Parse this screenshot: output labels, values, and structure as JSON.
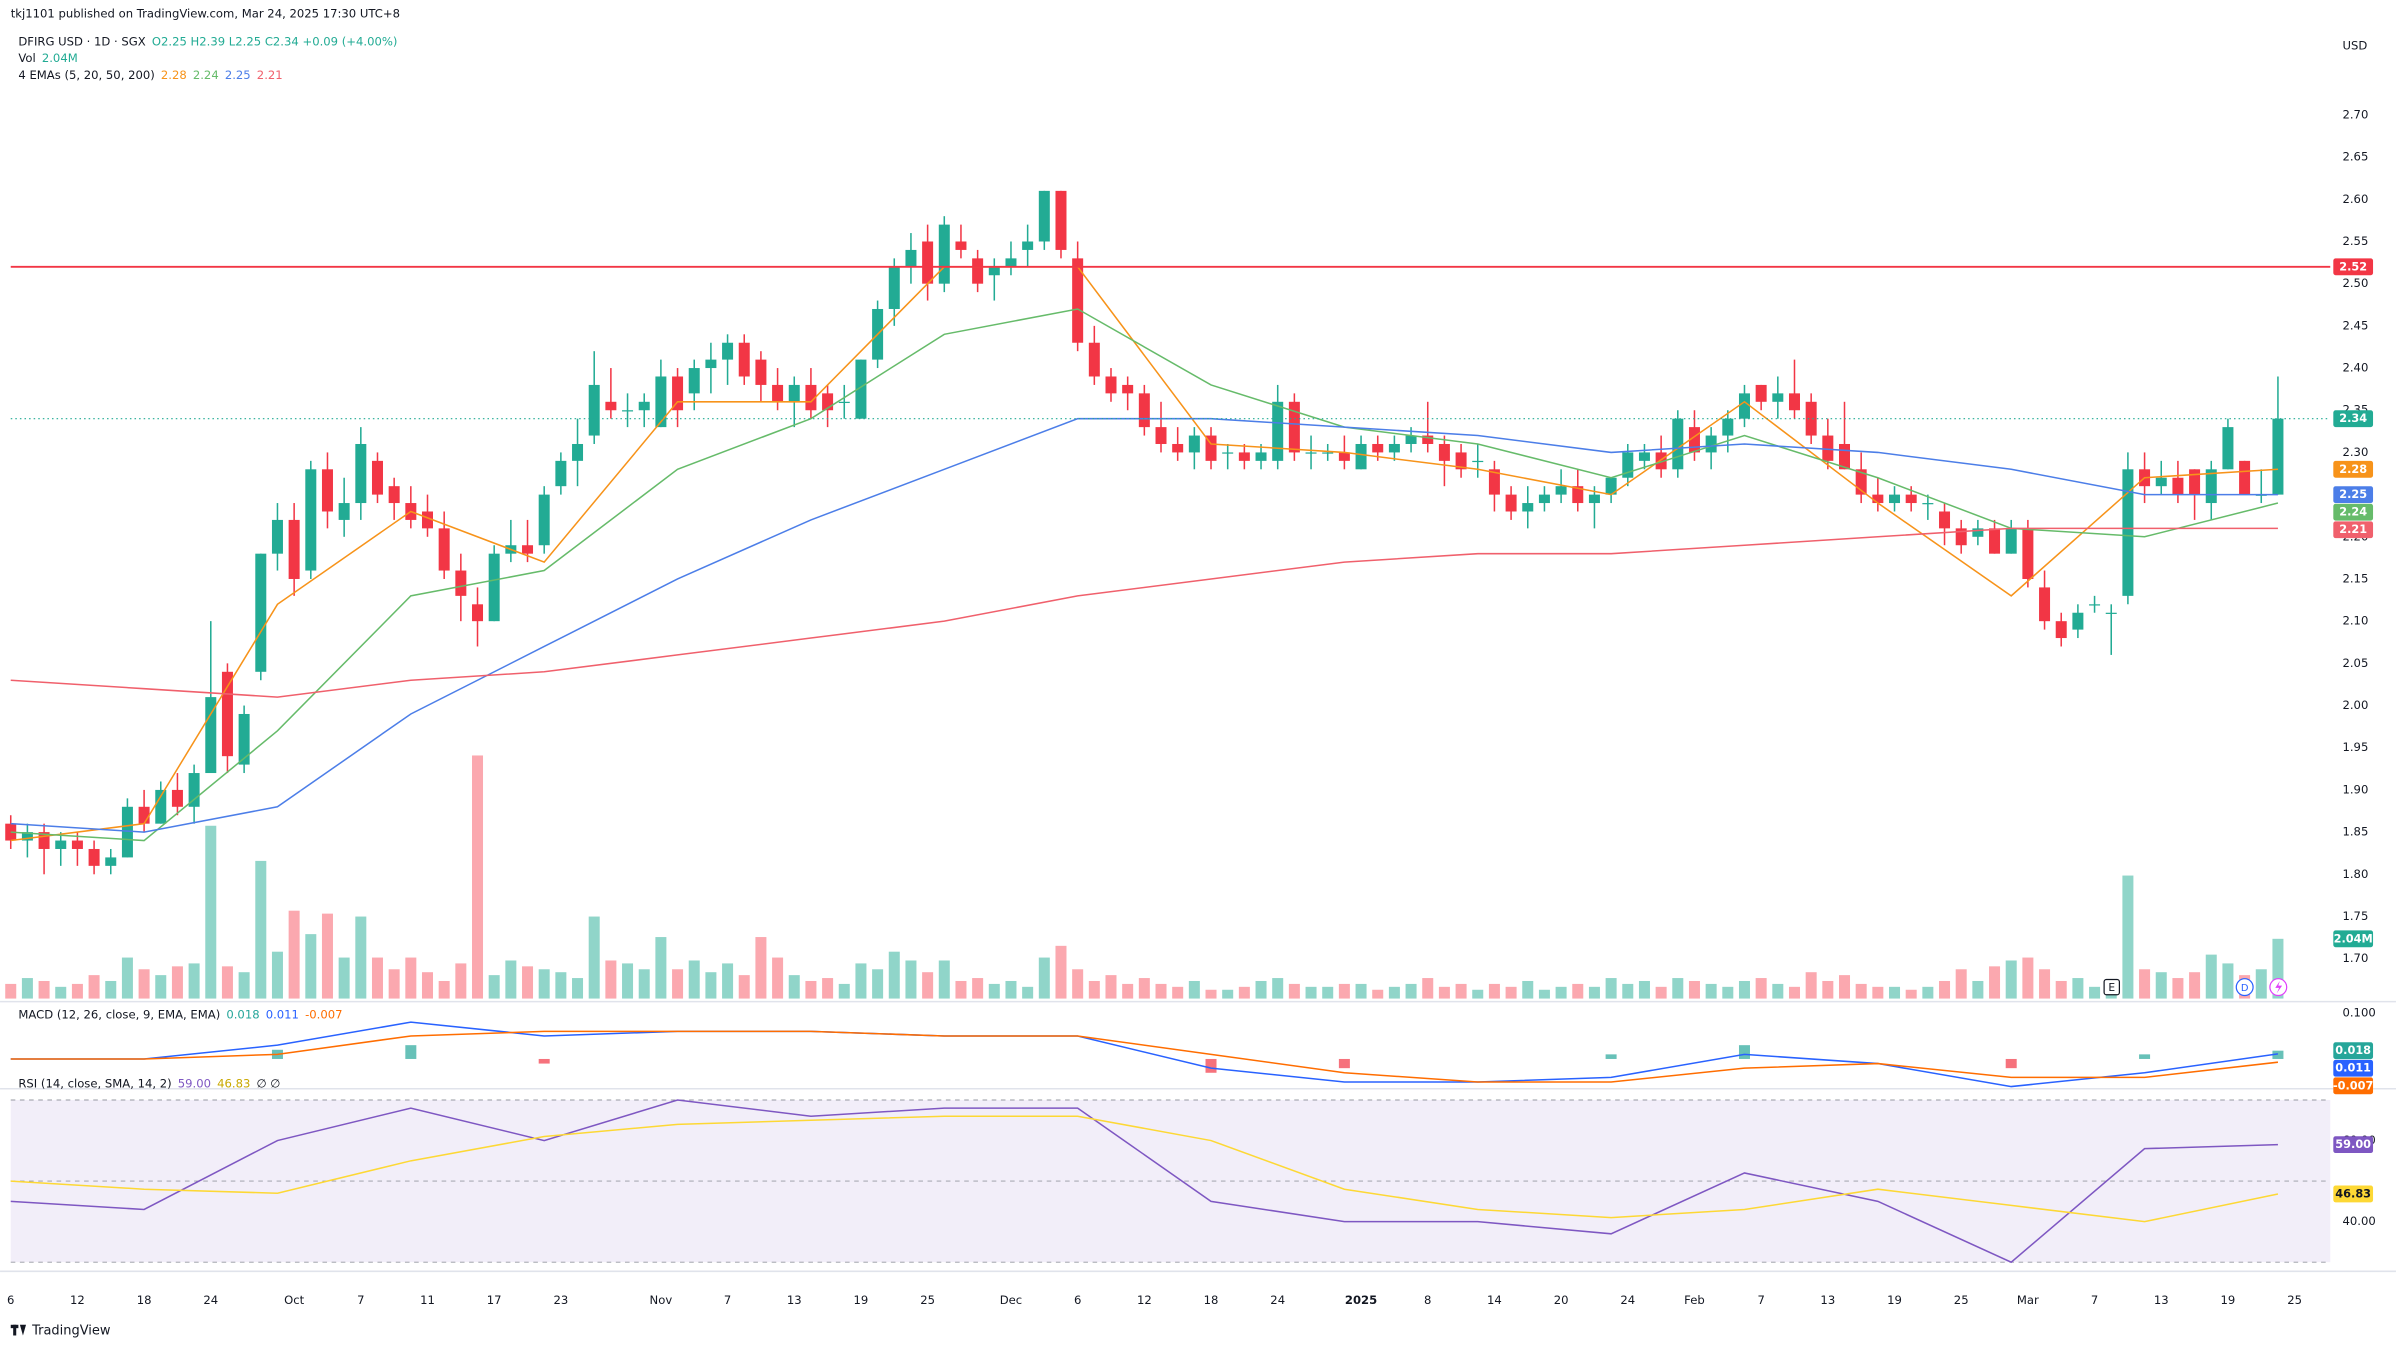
{
  "chart_data": {
    "type": "candlestick",
    "title": "tkj1101 published on TradingView.com, Mar 24, 2025 17:30 UTC+8",
    "symbol": "DFIRG USD · 1D · SGX",
    "ohlc_legend": "O2.25 H2.39 L2.25 C2.34 +0.09 (+4.00%)",
    "currency": "USD",
    "footer": "TradingView",
    "markers": [
      "E",
      "D"
    ],
    "up_color": "#22ab94",
    "down_color": "#f23645",
    "categories": [
      "6",
      null,
      null,
      null,
      "12",
      null,
      null,
      null,
      "18",
      null,
      null,
      null,
      "24",
      null,
      null,
      null,
      null,
      "Oct",
      null,
      null,
      null,
      "7",
      null,
      null,
      null,
      "11",
      null,
      null,
      null,
      "17",
      null,
      null,
      null,
      "23",
      null,
      null,
      null,
      null,
      null,
      "Nov",
      null,
      null,
      null,
      "7",
      null,
      null,
      null,
      "13",
      null,
      null,
      null,
      "19",
      null,
      null,
      null,
      "25",
      null,
      null,
      null,
      null,
      "Dec",
      null,
      null,
      null,
      "6",
      null,
      null,
      null,
      "12",
      null,
      null,
      null,
      "18",
      null,
      null,
      null,
      "24",
      null,
      null,
      null,
      null,
      "2025",
      null,
      null,
      null,
      "8",
      null,
      null,
      null,
      "14",
      null,
      null,
      null,
      "20",
      null,
      null,
      null,
      "24",
      null,
      null,
      null,
      "Feb",
      null,
      null,
      null,
      "7",
      null,
      null,
      null,
      "13",
      null,
      null,
      null,
      "19",
      null,
      null,
      null,
      "25",
      null,
      null,
      null,
      "Mar",
      null,
      null,
      null,
      "7",
      null,
      null,
      null,
      "13",
      null,
      null,
      null,
      "19",
      null,
      null,
      null,
      "25"
    ],
    "open": [
      1.86,
      1.84,
      1.85,
      1.83,
      1.84,
      1.83,
      1.81,
      1.82,
      1.88,
      1.86,
      1.9,
      1.88,
      1.92,
      2.04,
      1.93,
      2.04,
      2.18,
      2.22,
      2.16,
      2.28,
      2.22,
      2.24,
      2.29,
      2.26,
      2.24,
      2.23,
      2.21,
      2.16,
      2.12,
      2.1,
      2.18,
      2.19,
      2.19,
      2.26,
      2.29,
      2.32,
      2.36,
      2.35,
      2.35,
      2.33,
      2.39,
      2.37,
      2.4,
      2.41,
      2.43,
      2.41,
      2.38,
      2.36,
      2.38,
      2.37,
      2.36,
      2.34,
      2.41,
      2.47,
      2.52,
      2.55,
      2.5,
      2.55,
      2.53,
      2.51,
      2.52,
      2.54,
      2.55,
      2.61,
      2.53,
      2.43,
      2.39,
      2.38,
      2.37,
      2.33,
      2.31,
      2.3,
      2.32,
      2.3,
      2.3,
      2.29,
      2.29,
      2.36,
      2.3,
      2.3,
      2.3,
      2.28,
      2.31,
      2.3,
      2.31,
      2.32,
      2.31,
      2.3,
      2.29,
      2.28,
      2.25,
      2.23,
      2.24,
      2.25,
      2.26,
      2.24,
      2.25,
      2.27,
      2.29,
      2.3,
      2.28,
      2.33,
      2.3,
      2.32,
      2.34,
      2.38,
      2.36,
      2.37,
      2.36,
      2.32,
      2.31,
      2.28,
      2.25,
      2.24,
      2.25,
      2.24,
      2.23,
      2.21,
      2.2,
      2.21,
      2.18,
      2.21,
      2.14,
      2.1,
      2.09,
      2.12,
      2.11,
      2.13,
      2.28,
      2.26,
      2.27,
      2.28,
      2.24,
      2.28,
      2.29,
      2.25,
      2.25,
      null
    ],
    "high": [
      1.87,
      1.86,
      1.86,
      1.85,
      1.85,
      1.84,
      1.83,
      1.89,
      1.9,
      1.91,
      1.92,
      1.93,
      2.1,
      2.05,
      2.0,
      2.18,
      2.24,
      2.24,
      2.29,
      2.3,
      2.27,
      2.33,
      2.3,
      2.27,
      2.26,
      2.25,
      2.23,
      2.18,
      2.14,
      2.19,
      2.22,
      2.22,
      2.26,
      2.3,
      2.34,
      2.42,
      2.4,
      2.37,
      2.37,
      2.41,
      2.4,
      2.41,
      2.43,
      2.44,
      2.44,
      2.42,
      2.4,
      2.39,
      2.4,
      2.38,
      2.38,
      2.41,
      2.48,
      2.53,
      2.56,
      2.57,
      2.58,
      2.57,
      2.54,
      2.53,
      2.55,
      2.57,
      2.61,
      2.61,
      2.55,
      2.45,
      2.4,
      2.39,
      2.38,
      2.36,
      2.33,
      2.33,
      2.33,
      2.31,
      2.31,
      2.31,
      2.38,
      2.37,
      2.32,
      2.31,
      2.32,
      2.32,
      2.32,
      2.32,
      2.33,
      2.36,
      2.32,
      2.31,
      2.31,
      2.29,
      2.26,
      2.26,
      2.26,
      2.28,
      2.28,
      2.26,
      2.27,
      2.31,
      2.31,
      2.32,
      2.35,
      2.35,
      2.33,
      2.35,
      2.38,
      2.38,
      2.39,
      2.41,
      2.37,
      2.34,
      2.36,
      2.3,
      2.27,
      2.26,
      2.26,
      2.25,
      2.24,
      2.22,
      2.22,
      2.22,
      2.22,
      2.22,
      2.16,
      2.11,
      2.12,
      2.13,
      2.12,
      2.3,
      2.3,
      2.29,
      2.29,
      2.28,
      2.29,
      2.34,
      2.29,
      2.28,
      2.39,
      null
    ],
    "low": [
      1.83,
      1.82,
      1.8,
      1.81,
      1.81,
      1.8,
      1.8,
      1.82,
      1.85,
      1.86,
      1.87,
      1.86,
      1.92,
      1.92,
      1.92,
      2.03,
      2.16,
      2.13,
      2.15,
      2.21,
      2.2,
      2.22,
      2.24,
      2.22,
      2.21,
      2.2,
      2.15,
      2.1,
      2.07,
      2.1,
      2.17,
      2.17,
      2.18,
      2.25,
      2.26,
      2.31,
      2.34,
      2.33,
      2.33,
      2.33,
      2.33,
      2.35,
      2.37,
      2.38,
      2.38,
      2.36,
      2.35,
      2.33,
      2.34,
      2.33,
      2.34,
      2.34,
      2.4,
      2.45,
      2.5,
      2.48,
      2.49,
      2.53,
      2.49,
      2.48,
      2.51,
      2.52,
      2.54,
      2.53,
      2.42,
      2.38,
      2.36,
      2.35,
      2.32,
      2.3,
      2.29,
      2.28,
      2.28,
      2.28,
      2.28,
      2.28,
      2.28,
      2.29,
      2.28,
      2.29,
      2.28,
      2.28,
      2.29,
      2.29,
      2.3,
      2.3,
      2.26,
      2.27,
      2.27,
      2.23,
      2.22,
      2.21,
      2.23,
      2.24,
      2.23,
      2.21,
      2.24,
      2.26,
      2.28,
      2.27,
      2.27,
      2.29,
      2.28,
      2.3,
      2.33,
      2.35,
      2.34,
      2.34,
      2.31,
      2.28,
      2.28,
      2.24,
      2.23,
      2.23,
      2.23,
      2.22,
      2.19,
      2.18,
      2.19,
      2.18,
      2.18,
      2.14,
      2.09,
      2.07,
      2.08,
      2.11,
      2.06,
      2.12,
      2.24,
      2.25,
      2.24,
      2.22,
      2.22,
      2.28,
      2.25,
      2.24,
      2.25,
      null
    ],
    "close": [
      1.84,
      1.85,
      1.83,
      1.84,
      1.83,
      1.81,
      1.82,
      1.88,
      1.86,
      1.9,
      1.88,
      1.92,
      2.01,
      1.94,
      1.99,
      2.18,
      2.22,
      2.15,
      2.28,
      2.23,
      2.24,
      2.31,
      2.25,
      2.24,
      2.22,
      2.21,
      2.16,
      2.13,
      2.1,
      2.18,
      2.19,
      2.18,
      2.25,
      2.29,
      2.31,
      2.38,
      2.35,
      2.35,
      2.36,
      2.39,
      2.35,
      2.4,
      2.41,
      2.43,
      2.39,
      2.38,
      2.36,
      2.38,
      2.35,
      2.35,
      2.36,
      2.41,
      2.47,
      2.52,
      2.54,
      2.5,
      2.57,
      2.54,
      2.5,
      2.52,
      2.53,
      2.55,
      2.61,
      2.54,
      2.43,
      2.39,
      2.37,
      2.37,
      2.33,
      2.31,
      2.3,
      2.32,
      2.29,
      2.3,
      2.29,
      2.3,
      2.36,
      2.3,
      2.3,
      2.3,
      2.29,
      2.31,
      2.3,
      2.31,
      2.32,
      2.31,
      2.29,
      2.28,
      2.29,
      2.25,
      2.23,
      2.24,
      2.25,
      2.26,
      2.24,
      2.25,
      2.27,
      2.3,
      2.3,
      2.28,
      2.34,
      2.3,
      2.32,
      2.34,
      2.37,
      2.36,
      2.37,
      2.35,
      2.32,
      2.29,
      2.28,
      2.25,
      2.24,
      2.25,
      2.24,
      2.24,
      2.21,
      2.19,
      2.21,
      2.18,
      2.21,
      2.15,
      2.1,
      2.08,
      2.11,
      2.12,
      2.11,
      2.28,
      2.26,
      2.27,
      2.25,
      2.25,
      2.28,
      2.33,
      2.25,
      2.25,
      2.34,
      null
    ],
    "ylim": [
      1.65,
      2.8
    ],
    "yticks": [
      {
        "value": 1.7,
        "label": "1.70"
      },
      1.75,
      {
        "value": 1.8,
        "label": "1.80"
      },
      1.85,
      {
        "value": 1.9,
        "label": "1.90"
      },
      1.95,
      {
        "value": 2.0,
        "label": "2.00"
      },
      2.05,
      {
        "value": 2.1,
        "label": "2.10"
      },
      2.15,
      {
        "value": 2.2,
        "label": "2.20"
      },
      2.25,
      {
        "value": 2.3,
        "label": "2.30"
      },
      2.35,
      {
        "value": 2.4,
        "label": "2.40"
      },
      2.45,
      {
        "value": 2.5,
        "label": "2.50"
      },
      2.55,
      {
        "value": 2.6,
        "label": "2.60"
      },
      2.65,
      {
        "value": 2.7,
        "label": "2.70"
      }
    ],
    "hline": {
      "value": 2.52,
      "color": "#f23645"
    },
    "volume": {
      "name": "Vol",
      "ylim": [
        0,
        9
      ],
      "values": [
        0.5,
        0.7,
        0.6,
        0.4,
        0.5,
        0.8,
        0.6,
        1.4,
        1.0,
        0.8,
        1.1,
        1.2,
        5.9,
        1.1,
        0.9,
        4.7,
        1.6,
        3.0,
        2.2,
        2.9,
        1.4,
        2.8,
        1.4,
        1.0,
        1.4,
        0.9,
        0.6,
        1.2,
        8.3,
        0.8,
        1.3,
        1.1,
        1.0,
        0.9,
        0.7,
        2.8,
        1.3,
        1.2,
        1.0,
        2.1,
        1.0,
        1.3,
        0.9,
        1.2,
        0.8,
        2.1,
        1.4,
        0.8,
        0.6,
        0.7,
        0.5,
        1.2,
        1.0,
        1.6,
        1.3,
        0.9,
        1.3,
        0.6,
        0.7,
        0.5,
        0.6,
        0.4,
        1.4,
        1.8,
        1.0,
        0.6,
        0.8,
        0.5,
        0.7,
        0.5,
        0.4,
        0.6,
        0.3,
        0.3,
        0.4,
        0.6,
        0.7,
        0.5,
        0.4,
        0.4,
        0.5,
        0.5,
        0.3,
        0.4,
        0.5,
        0.7,
        0.4,
        0.5,
        0.3,
        0.5,
        0.4,
        0.6,
        0.3,
        0.4,
        0.5,
        0.4,
        0.7,
        0.5,
        0.6,
        0.4,
        0.7,
        0.6,
        0.5,
        0.4,
        0.6,
        0.7,
        0.5,
        0.4,
        0.9,
        0.6,
        0.8,
        0.5,
        0.4,
        0.4,
        0.3,
        0.4,
        0.6,
        1.0,
        0.6,
        1.1,
        1.3,
        1.4,
        1.0,
        0.6,
        0.7,
        0.4,
        0.6,
        4.2,
        1.0,
        0.9,
        0.7,
        0.9,
        1.5,
        1.2,
        0.8,
        1.0,
        2.04,
        null
      ],
      "value_labels": [
        null,
        null,
        null,
        null,
        null,
        null,
        null,
        null,
        null,
        null,
        null,
        null,
        null,
        null,
        null,
        null,
        null,
        null,
        null,
        null,
        null,
        null,
        null,
        null,
        null,
        null,
        null,
        null,
        null,
        null,
        null,
        null,
        null,
        null,
        null,
        null,
        null,
        null,
        null,
        null,
        null,
        null,
        null,
        null,
        null,
        null,
        null,
        null,
        null,
        null,
        null,
        null,
        null,
        null,
        null,
        null,
        null,
        null,
        null,
        null,
        null,
        null,
        null,
        null,
        null,
        null,
        null,
        null,
        null,
        null,
        null,
        null,
        null,
        null,
        null,
        null,
        null,
        null,
        null,
        null,
        null,
        null,
        null,
        null,
        null,
        null,
        null,
        null,
        null,
        null,
        null,
        null,
        null,
        null,
        null,
        null,
        null,
        null,
        null,
        null,
        null,
        null,
        null,
        null,
        null,
        null,
        null,
        null,
        null,
        null,
        null,
        null,
        null,
        null,
        null,
        null,
        null,
        null,
        null,
        null,
        null,
        null,
        null,
        null,
        null,
        null,
        null,
        null,
        null,
        null,
        null,
        null,
        null,
        null,
        null,
        null,
        "2.04M",
        null
      ]
    },
    "ema": {
      "name": "4 EMAs (5, 20, 50, 200)",
      "x": [
        0,
        8,
        16,
        24,
        32,
        40,
        48,
        56,
        64,
        72,
        80,
        88,
        96,
        104,
        112,
        120,
        128,
        136
      ],
      "series": [
        {
          "color": "#f7931a",
          "values": [
            1.84,
            1.86,
            2.12,
            2.23,
            2.17,
            2.36,
            2.36,
            2.52,
            2.52,
            2.31,
            2.3,
            2.28,
            2.25,
            2.36,
            2.24,
            2.13,
            2.27,
            2.28
          ]
        },
        {
          "color": "#66bb6a",
          "values": [
            1.85,
            1.84,
            1.97,
            2.13,
            2.16,
            2.28,
            2.34,
            2.44,
            2.47,
            2.38,
            2.33,
            2.31,
            2.27,
            2.32,
            2.27,
            2.21,
            2.2,
            2.24
          ]
        },
        {
          "color": "#4c7ee8",
          "values": [
            1.86,
            1.85,
            1.88,
            1.99,
            2.07,
            2.15,
            2.22,
            2.28,
            2.34,
            2.34,
            2.33,
            2.32,
            2.3,
            2.31,
            2.3,
            2.28,
            2.25,
            2.25
          ]
        },
        {
          "color": "#f0606c",
          "values": [
            2.03,
            2.02,
            2.01,
            2.03,
            2.04,
            2.06,
            2.08,
            2.1,
            2.13,
            2.15,
            2.17,
            2.18,
            2.18,
            2.19,
            2.2,
            2.21,
            2.21,
            2.21
          ]
        }
      ]
    },
    "macd": {
      "name": "MACD (12, 26, close, 9, EMA, EMA)",
      "x": [
        0,
        8,
        16,
        24,
        32,
        40,
        48,
        56,
        64,
        72,
        80,
        88,
        96,
        104,
        112,
        120,
        128,
        136
      ],
      "ylim": [
        -0.063,
        0.123
      ],
      "yticks": [
        {
          "value": 0.1,
          "label": "0.100"
        }
      ],
      "series": [
        {
          "type": "bar",
          "color": "#26a69a",
          "values": [
            0,
            0,
            0.02,
            0.03,
            -0.01,
            0,
            0,
            0,
            0,
            -0.03,
            -0.02,
            0,
            0.01,
            0.03,
            0,
            -0.02,
            0.01,
            0.018
          ]
        },
        {
          "type": "line",
          "color": "#2962ff",
          "values": [
            0.0,
            0.0,
            0.03,
            0.08,
            0.05,
            0.06,
            0.06,
            0.05,
            0.05,
            -0.02,
            -0.05,
            -0.05,
            -0.04,
            0.01,
            -0.01,
            -0.06,
            -0.03,
            0.011
          ]
        },
        {
          "type": "line",
          "color": "#ff6d00",
          "values": [
            0.0,
            0.0,
            0.01,
            0.05,
            0.06,
            0.06,
            0.06,
            0.05,
            0.05,
            0.01,
            -0.03,
            -0.05,
            -0.05,
            -0.02,
            -0.01,
            -0.04,
            -0.04,
            -0.007
          ]
        }
      ]
    },
    "rsi": {
      "name": "RSI (14, close, SMA, 14, 2)",
      "extra": "∅ ∅",
      "x": [
        0,
        8,
        16,
        24,
        32,
        40,
        48,
        56,
        64,
        72,
        80,
        88,
        96,
        104,
        112,
        120,
        128,
        136
      ],
      "ylim": [
        28.5,
        72.6
      ],
      "yticks": [
        {
          "value": 60,
          "label": "60.00"
        },
        {
          "value": 40,
          "label": "40.00"
        }
      ],
      "bands": [
        30,
        50,
        70
      ],
      "series": [
        {
          "color": "#7e57c2",
          "values": [
            45,
            43,
            60,
            68,
            60,
            70,
            66,
            68,
            68,
            45,
            40,
            40,
            37,
            52,
            45,
            30,
            58,
            59
          ],
          "value_labels": [
            null,
            null,
            null,
            null,
            null,
            null,
            null,
            null,
            null,
            null,
            null,
            null,
            null,
            null,
            null,
            null,
            null,
            "59.00"
          ]
        },
        {
          "color": "#fdd835",
          "values": [
            50,
            48,
            47,
            55,
            61,
            64,
            65,
            66,
            66,
            60,
            48,
            43,
            41,
            43,
            48,
            44,
            40,
            46.83
          ]
        }
      ]
    }
  }
}
